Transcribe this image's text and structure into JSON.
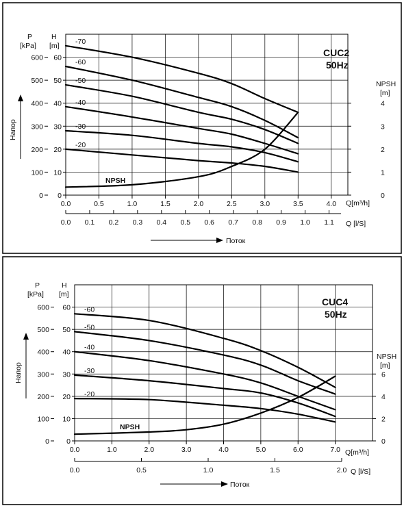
{
  "chart_data": [
    {
      "type": "line",
      "title": "CUC2",
      "subtitle": "50Hz",
      "y_axis_pressure": {
        "label": "P",
        "unit": "[kPa]",
        "ticks": [
          0,
          100,
          200,
          300,
          400,
          500,
          600
        ]
      },
      "y_axis_head": {
        "label": "H",
        "unit": "[m]",
        "ticks": [
          0,
          10,
          20,
          30,
          40,
          50,
          60
        ]
      },
      "y_axis_npsh": {
        "label": "NPSH",
        "unit": "[m]",
        "ticks": [
          0,
          1,
          2,
          3,
          4
        ]
      },
      "x_axis_m3h": {
        "label": "Q[m³/h]",
        "ticks": [
          0.0,
          0.5,
          1.0,
          1.5,
          2.0,
          2.5,
          3.0,
          3.5,
          4.0
        ],
        "tick_labels": [
          "0.0",
          "0.5",
          "1.0",
          "1.5",
          "2.0",
          "2.5",
          "3.0",
          "3.5",
          "4.0"
        ]
      },
      "x_axis_ls": {
        "label": "Q [l/S]",
        "ticks": [
          0,
          0.1,
          0.2,
          0.3,
          0.4,
          0.5,
          0.6,
          0.7,
          0.8,
          0.9,
          1.0,
          1.1
        ],
        "tick_labels": [
          "0.0",
          "0.1",
          "0.2",
          "0.3",
          "0.4",
          "0.5",
          "0.6",
          "0.7",
          "0.8",
          "0.9",
          "1.0",
          "1.1"
        ]
      },
      "side_label": "Напор",
      "flow_label": "Поток",
      "head_range": [
        0,
        70
      ],
      "flow_range": [
        0,
        4.25
      ],
      "series": [
        {
          "name": "-70",
          "x": [
            0,
            1.0,
            2.0,
            2.5,
            3.0,
            3.5
          ],
          "y": [
            65,
            60,
            53,
            48.5,
            42,
            36
          ]
        },
        {
          "name": "-60",
          "x": [
            0,
            1.0,
            2.0,
            2.5,
            3.0,
            3.5
          ],
          "y": [
            56,
            50,
            42.5,
            38.5,
            32.5,
            25
          ]
        },
        {
          "name": "-50",
          "x": [
            0,
            1.0,
            2.0,
            2.5,
            3.0,
            3.5
          ],
          "y": [
            48,
            43,
            36,
            33,
            28.5,
            22.5
          ]
        },
        {
          "name": "-40",
          "x": [
            0,
            1.0,
            2.0,
            2.5,
            3.0,
            3.5
          ],
          "y": [
            38.5,
            34,
            29,
            26.5,
            22.5,
            18
          ]
        },
        {
          "name": "-30",
          "x": [
            0,
            1.0,
            2.0,
            2.5,
            3.0,
            3.5
          ],
          "y": [
            28,
            26,
            22.5,
            21,
            18.5,
            14.5
          ]
        },
        {
          "name": "-20",
          "x": [
            0,
            1.0,
            2.0,
            2.5,
            3.0,
            3.5
          ],
          "y": [
            20,
            17.5,
            15,
            14,
            12.5,
            10
          ]
        },
        {
          "name": "NPSH",
          "x": [
            0,
            1.0,
            2.0,
            2.5,
            3.0,
            3.5
          ],
          "y": [
            0.35,
            0.45,
            0.8,
            1.25,
            2.0,
            3.6
          ]
        }
      ]
    },
    {
      "type": "line",
      "title": "CUC4",
      "subtitle": "50Hz",
      "y_axis_pressure": {
        "label": "P",
        "unit": "[kPa]",
        "ticks": [
          0,
          100,
          200,
          300,
          400,
          500,
          600
        ]
      },
      "y_axis_head": {
        "label": "H",
        "unit": "[m]",
        "ticks": [
          0,
          10,
          20,
          30,
          40,
          50,
          60
        ]
      },
      "y_axis_npsh": {
        "label": "NPSH",
        "unit": "[m]",
        "ticks": [
          0,
          2,
          4,
          6
        ]
      },
      "x_axis_m3h": {
        "label": "Q[m³/h]",
        "ticks": [
          0.0,
          1.0,
          2.0,
          3.0,
          4.0,
          5.0,
          6.0,
          7.0
        ],
        "tick_labels": [
          "0.0",
          "1.0",
          "2.0",
          "3.0",
          "4.0",
          "5.0",
          "6.0",
          "7.0"
        ]
      },
      "x_axis_ls": {
        "label": "Q [l/S]",
        "ticks": [
          0,
          0.5,
          1.0,
          1.5,
          2.0
        ],
        "tick_labels": [
          "0.0",
          "0.5",
          "1.0",
          "1.5",
          "2.0"
        ]
      },
      "side_label": "Напор",
      "flow_label": "Поток",
      "head_range": [
        0,
        70
      ],
      "flow_range": [
        0,
        8.0
      ],
      "series": [
        {
          "name": "-60",
          "x": [
            0,
            2.0,
            4.0,
            5.0,
            6.0,
            7.0
          ],
          "y": [
            57,
            54,
            46,
            40.5,
            33,
            24
          ]
        },
        {
          "name": "-50",
          "x": [
            0,
            2.0,
            4.0,
            5.0,
            6.0,
            7.0
          ],
          "y": [
            49,
            45,
            38.5,
            34,
            27,
            21
          ]
        },
        {
          "name": "-40",
          "x": [
            0,
            2.0,
            4.0,
            5.0,
            6.0,
            7.0
          ],
          "y": [
            40,
            36,
            30,
            26,
            20,
            14
          ]
        },
        {
          "name": "-30",
          "x": [
            0,
            2.0,
            4.0,
            5.0,
            6.0,
            7.0
          ],
          "y": [
            29.5,
            27,
            23.5,
            21.5,
            17,
            11
          ]
        },
        {
          "name": "-20",
          "x": [
            0,
            2.0,
            4.0,
            5.0,
            6.0,
            7.0
          ],
          "y": [
            19,
            18.5,
            16,
            14.5,
            12,
            8.5
          ]
        },
        {
          "name": "NPSH",
          "x": [
            0,
            2.0,
            3.0,
            4.0,
            5.0,
            6.0,
            7.0
          ],
          "y": [
            0.6,
            0.8,
            1.0,
            1.5,
            2.5,
            3.9,
            5.8
          ]
        }
      ]
    }
  ]
}
